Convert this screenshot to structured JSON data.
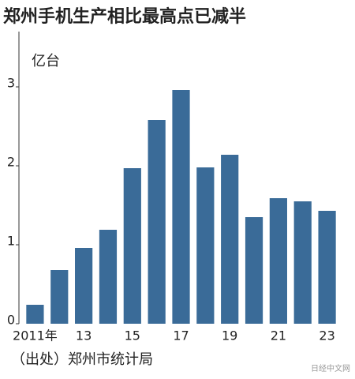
{
  "chart_data": {
    "type": "bar",
    "title": "郑州手机生产相比最高点已减半",
    "unit_label": "亿台",
    "source": "（出处）郑州市统计局",
    "watermark": "日经中文网",
    "categories": [
      "2011年",
      null,
      "13",
      null,
      "15",
      null,
      "17",
      null,
      "19",
      null,
      "21",
      null,
      "23"
    ],
    "values": [
      0.24,
      0.68,
      0.96,
      1.19,
      1.97,
      2.58,
      2.96,
      1.98,
      2.14,
      1.35,
      1.59,
      1.55,
      1.43
    ],
    "color": "#3a6b98",
    "ylim": [
      0,
      3.7
    ],
    "yticks": [
      0,
      1,
      2,
      3
    ],
    "grid": false
  }
}
